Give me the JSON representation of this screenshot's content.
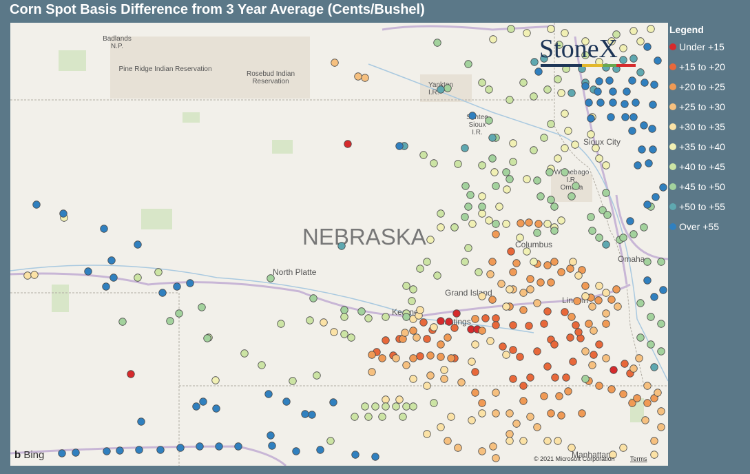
{
  "title": "Corn Spot Basis Difference from 3 Year Average (Cents/Bushel)",
  "legend": {
    "title": "Legend",
    "items": [
      {
        "label": "Under +15",
        "color": "#d62a2c"
      },
      {
        "label": "+15 to +20",
        "color": "#e8683a"
      },
      {
        "label": "+20 to +25",
        "color": "#f09a55"
      },
      {
        "label": "+25 to +30",
        "color": "#f6c07f"
      },
      {
        "label": "+30 to +35",
        "color": "#fbe2a6"
      },
      {
        "label": "+35 to +40",
        "color": "#f1f0b4"
      },
      {
        "label": "+40 to +45",
        "color": "#cce4a4"
      },
      {
        "label": "+45 to +50",
        "color": "#a3d29d"
      },
      {
        "label": "+50 to +55",
        "color": "#5fa8b0"
      },
      {
        "label": "Over +55",
        "color": "#3080bf"
      }
    ]
  },
  "map_labels": [
    {
      "lines": [
        "Badlands",
        "N.P."
      ]
    },
    {
      "lines": [
        "Pine Ridge Indian Reservation"
      ]
    },
    {
      "lines": [
        "Rosebud Indian",
        "Reservation"
      ]
    },
    {
      "lines": [
        "Yankton",
        "I.R."
      ]
    },
    {
      "lines": [
        "Santee",
        "Sioux",
        "I.R."
      ]
    },
    {
      "lines": [
        "Sioux City"
      ]
    },
    {
      "lines": [
        "Winnebago",
        "I.R.",
        "Omaha"
      ]
    },
    {
      "lines": [
        "Columbus"
      ]
    },
    {
      "lines": [
        "Omaha"
      ]
    },
    {
      "lines": [
        "North Platte"
      ]
    },
    {
      "lines": [
        "Grand Island"
      ]
    },
    {
      "lines": [
        "Kearney"
      ]
    },
    {
      "lines": [
        "Hastings"
      ]
    },
    {
      "lines": [
        "Lincoln"
      ]
    },
    {
      "lines": [
        "Manhattan"
      ]
    }
  ],
  "state_label": "NEBRASKA",
  "logo": "StoneX",
  "bing": "Bing",
  "copyright": "© 2021 Microsoft Corporation",
  "terms": "Terms"
}
